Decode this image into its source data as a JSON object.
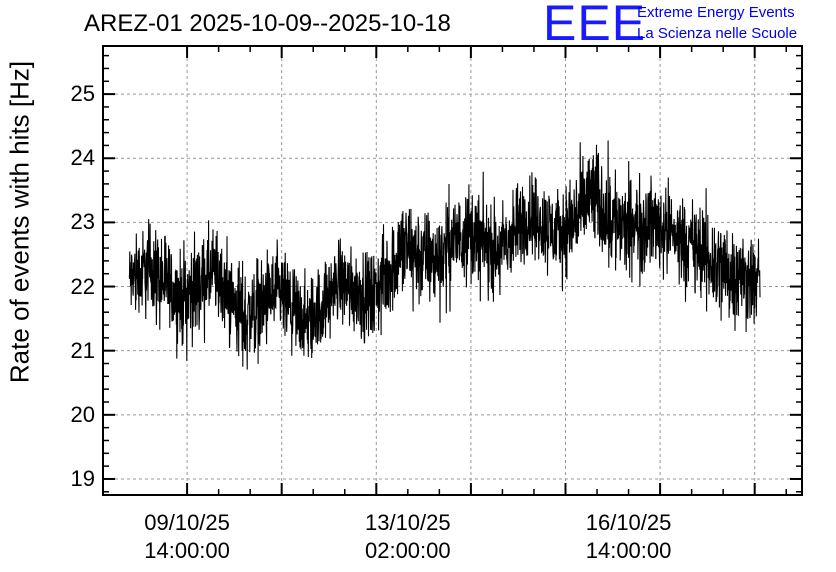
{
  "header": {
    "title": "AREZ-01 2025-10-09--2025-10-18",
    "logo_mark": "EEE",
    "logo_line1": "Extreme Energy Events",
    "logo_line2": "La Scienza nelle Scuole"
  },
  "chart_data": {
    "type": "line",
    "title": "AREZ-01 2025-10-09--2025-10-18",
    "xlabel": "",
    "ylabel": "Rate of events with hits [Hz]",
    "ylim": [
      18.75,
      25.75
    ],
    "yticks": [
      19,
      20,
      21,
      22,
      23,
      24,
      25
    ],
    "xlim": [
      "2025-10-08T06:00:00",
      "2025-10-19T08:00:00"
    ],
    "xticks": [
      {
        "date": "09/10/25",
        "time": "14:00:00"
      },
      {
        "date": "13/10/25",
        "time": "02:00:00"
      },
      {
        "date": "16/10/25",
        "time": "14:00:00"
      }
    ],
    "grid": true,
    "line_color": "#000000",
    "series": [
      {
        "x": [
          "2025-10-08T12:00",
          "2025-10-09T00:00",
          "2025-10-09T12:00",
          "2025-10-10T00:00",
          "2025-10-10T12:00",
          "2025-10-11T00:00",
          "2025-10-11T12:00",
          "2025-10-12T00:00",
          "2025-10-12T12:00",
          "2025-10-13T00:00",
          "2025-10-13T12:00",
          "2025-10-14T00:00",
          "2025-10-14T12:00",
          "2025-10-15T00:00",
          "2025-10-15T12:00",
          "2025-10-16T00:00",
          "2025-10-16T12:00",
          "2025-10-17T00:00",
          "2025-10-17T12:00",
          "2025-10-18T00:00",
          "2025-10-18T12:00"
        ],
        "values": [
          22.0,
          22.3,
          21.8,
          22.2,
          21.5,
          21.9,
          21.4,
          22.1,
          21.8,
          22.6,
          22.4,
          22.9,
          22.5,
          23.1,
          22.8,
          23.4,
          22.9,
          23.0,
          22.7,
          22.3,
          22.1
        ],
        "spread": [
          0.9,
          1.0,
          1.1,
          1.0,
          1.1,
          1.0,
          1.0,
          0.9,
          1.0,
          1.2,
          1.0,
          1.1,
          1.0,
          1.0,
          1.0,
          1.2,
          1.1,
          1.0,
          1.0,
          1.2,
          1.0
        ]
      }
    ]
  }
}
